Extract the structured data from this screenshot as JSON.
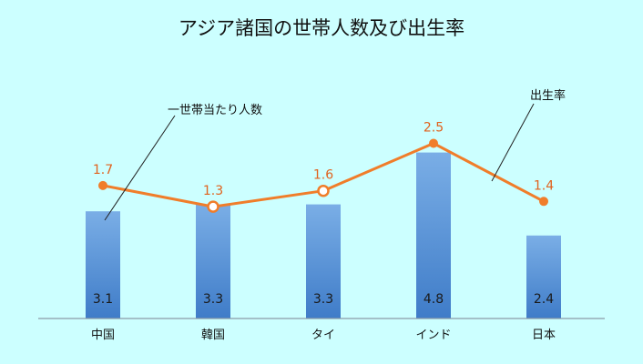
{
  "chart_data": {
    "type": "bar",
    "title": "アジア諸国の世帯人数及び出生率",
    "categories": [
      "中国",
      "韓国",
      "タイ",
      "インド",
      "日本"
    ],
    "series": [
      {
        "name": "一世帯当たり人数",
        "type": "bar",
        "values": [
          3.1,
          3.3,
          3.3,
          4.8,
          2.4
        ],
        "ylim": [
          0,
          5.0
        ],
        "color": "#4a86cf"
      },
      {
        "name": "出生率",
        "type": "line",
        "values": [
          1.7,
          1.3,
          1.6,
          2.5,
          1.4
        ],
        "ylim": [
          -0.5,
          3.0
        ],
        "color": "#f07d2a"
      }
    ],
    "grid": false,
    "legend": "callout-labels"
  }
}
